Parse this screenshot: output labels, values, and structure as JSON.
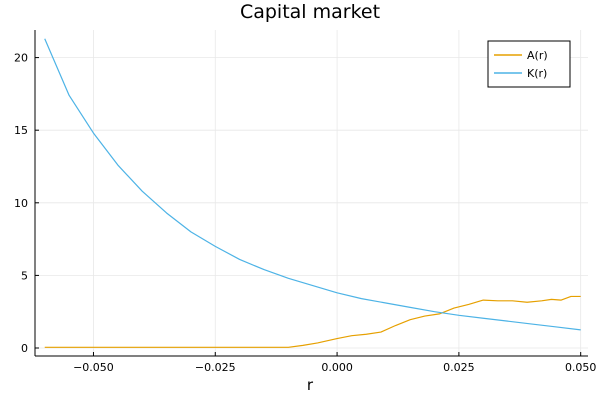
{
  "chart_data": {
    "type": "line",
    "title": "Capital market",
    "xlabel": "r",
    "ylabel": "",
    "xlim": [
      -0.062,
      0.0515
    ],
    "ylim": [
      -0.55,
      21.9
    ],
    "xticks": [
      -0.05,
      -0.025,
      0.0,
      0.025,
      0.05
    ],
    "xtick_labels": [
      "−0.050",
      "−0.025",
      "0.000",
      "0.025",
      "0.050"
    ],
    "yticks": [
      0,
      5,
      10,
      15,
      20
    ],
    "ytick_labels": [
      "0",
      "5",
      "10",
      "15",
      "20"
    ],
    "grid": true,
    "legend_position": "top-right",
    "series": [
      {
        "name": "A(r)",
        "color": "#e6a000",
        "x": [
          -0.06,
          -0.05,
          -0.04,
          -0.03,
          -0.02,
          -0.015,
          -0.01,
          -0.007,
          -0.004,
          0.0,
          0.003,
          0.006,
          0.009,
          0.012,
          0.015,
          0.018,
          0.021,
          0.024,
          0.027,
          0.03,
          0.033,
          0.036,
          0.039,
          0.042,
          0.044,
          0.046,
          0.048,
          0.05
        ],
        "y": [
          0.05,
          0.05,
          0.05,
          0.05,
          0.05,
          0.05,
          0.05,
          0.18,
          0.35,
          0.65,
          0.85,
          0.95,
          1.1,
          1.55,
          1.95,
          2.2,
          2.35,
          2.75,
          3.0,
          3.3,
          3.25,
          3.25,
          3.15,
          3.25,
          3.35,
          3.3,
          3.55,
          3.55
        ]
      },
      {
        "name": "K(r)",
        "color": "#4db3e6",
        "x": [
          -0.06,
          -0.055,
          -0.05,
          -0.045,
          -0.04,
          -0.035,
          -0.03,
          -0.025,
          -0.02,
          -0.015,
          -0.01,
          -0.005,
          0.0,
          0.005,
          0.01,
          0.015,
          0.02,
          0.025,
          0.03,
          0.035,
          0.04,
          0.045,
          0.05
        ],
        "y": [
          21.3,
          17.4,
          14.8,
          12.6,
          10.8,
          9.3,
          8.0,
          7.0,
          6.1,
          5.4,
          4.8,
          4.3,
          3.8,
          3.4,
          3.1,
          2.8,
          2.5,
          2.25,
          2.05,
          1.85,
          1.65,
          1.45,
          1.25
        ]
      }
    ]
  }
}
